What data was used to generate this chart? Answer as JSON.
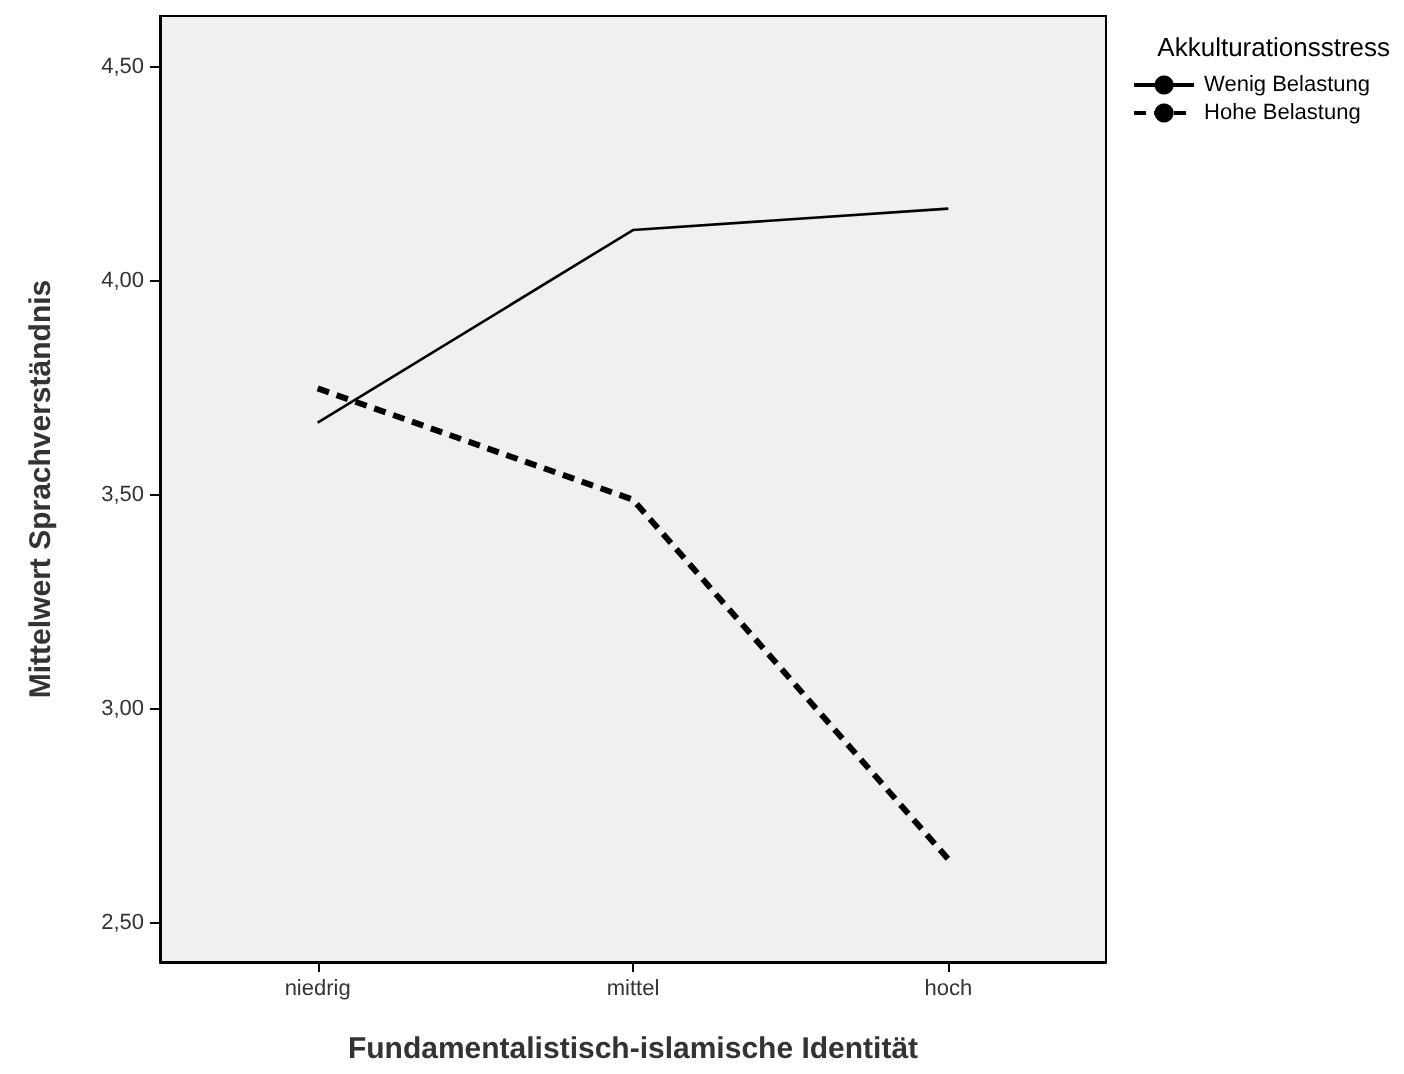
{
  "chart_data": {
    "type": "line",
    "xlabel": "Fundamentalistisch-islamische Identität",
    "ylabel": "Mittelwert Sprachverständnis",
    "legend_title": "Akkulturationsstress",
    "legend": "top right",
    "grid": false,
    "marker": "none",
    "categories": [
      "niedrig",
      "mittel",
      "hoch"
    ],
    "ylim": [
      2.41,
      4.62
    ],
    "yticks": [
      {
        "value": 2.5,
        "label": "2,50"
      },
      {
        "value": 3,
        "label": "3,00"
      },
      {
        "value": 3.5,
        "label": "3,50"
      },
      {
        "value": 4,
        "label": "4,00"
      },
      {
        "value": 4.5,
        "label": "4,50"
      }
    ],
    "series": [
      {
        "name": "Wenig Belastung",
        "color": "#000000",
        "line_style": "solid",
        "values": [
          3.67,
          4.12,
          4.17
        ]
      },
      {
        "name": "Hohe Belastung",
        "color": "#000000",
        "line_style": "dashed",
        "values": [
          3.75,
          3.49,
          2.65
        ]
      }
    ]
  }
}
